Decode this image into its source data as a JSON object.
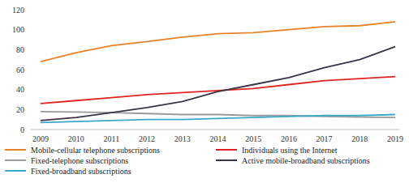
{
  "chart_data": {
    "type": "line",
    "categories": [
      "2009",
      "2010",
      "2011",
      "2012",
      "2013",
      "2014",
      "2015",
      "2016",
      "2017",
      "2018",
      "2019"
    ],
    "series": [
      {
        "name": "Mobile-cellular telephone subscriptions",
        "color": "#e8822a",
        "values": [
          68,
          77,
          84,
          88,
          92.5,
          96,
          97,
          100,
          103,
          104,
          108
        ]
      },
      {
        "name": "Individuals using the Internet",
        "color": "#e02424",
        "values": [
          26,
          29,
          32,
          35,
          37,
          39,
          41,
          45,
          49,
          51,
          53
        ]
      },
      {
        "name": "Fixed-telephone subscriptions",
        "color": "#9a9a9a",
        "values": [
          18,
          17.5,
          17,
          16,
          15,
          15,
          14,
          14,
          13,
          12.5,
          12
        ]
      },
      {
        "name": "Active mobile-broadband subscriptions",
        "color": "#3b3346",
        "values": [
          9,
          12,
          17,
          22,
          28,
          38,
          45,
          52,
          62,
          70,
          83
        ]
      },
      {
        "name": "Fixed-broadband subscriptions",
        "color": "#3ba8c8",
        "values": [
          7,
          8,
          9,
          10,
          10,
          11,
          12,
          13,
          14,
          14,
          15
        ]
      }
    ],
    "ylim": [
      0,
      120
    ],
    "yticks": [
      0,
      20,
      40,
      60,
      80,
      100,
      120
    ],
    "grid": false,
    "legend": "bottom"
  }
}
